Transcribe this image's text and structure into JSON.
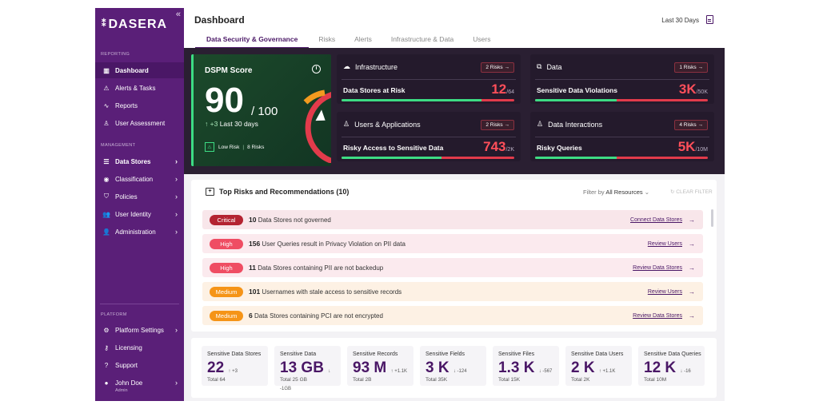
{
  "sidebar": {
    "logo": "DASERA",
    "sections": {
      "reporting": "REPORTING",
      "management": "MANAGEMENT",
      "platform": "PLATFORM"
    },
    "reporting_items": [
      {
        "label": "Dashboard",
        "icon": "bar-chart-icon"
      },
      {
        "label": "Alerts & Tasks",
        "icon": "warning-icon"
      },
      {
        "label": "Reports",
        "icon": "activity-icon"
      },
      {
        "label": "User Assessment",
        "icon": "user-check-icon"
      }
    ],
    "management_items": [
      {
        "label": "Data Stores",
        "icon": "list-icon"
      },
      {
        "label": "Classification",
        "icon": "database-icon"
      },
      {
        "label": "Policies",
        "icon": "shield-icon"
      },
      {
        "label": "User Identity",
        "icon": "users-icon"
      },
      {
        "label": "Administration",
        "icon": "user-cog-icon"
      }
    ],
    "platform_items": [
      {
        "label": "Platform Settings",
        "icon": "gear-icon"
      },
      {
        "label": "Licensing",
        "icon": "key-icon"
      },
      {
        "label": "Support",
        "icon": "help-icon"
      }
    ],
    "user": {
      "name": "John Doe",
      "role": "Admin"
    }
  },
  "header": {
    "title": "Dashboard",
    "range": "Last 30 Days",
    "tabs": [
      "Data Security & Governance",
      "Risks",
      "Alerts",
      "Infrastructure & Data",
      "Users"
    ]
  },
  "dspm": {
    "title": "DSPM Score",
    "score": "90",
    "max": "/ 100",
    "delta": "+3",
    "delta_period": "Last 30 days",
    "risk_level": "Low Risk",
    "risk_count": "8 Risks",
    "score_value": 90
  },
  "cards": [
    {
      "title": "Infrastructure",
      "icon": "cloud-icon",
      "badge": "2 Risks →",
      "label": "Data Stores at Risk",
      "value": "12",
      "total": "/64",
      "fill_fraction": 0.81
    },
    {
      "title": "Data",
      "icon": "cubes-icon",
      "badge": "1 Risks →",
      "label": "Sensitive Data Violations",
      "value": "3K",
      "total": "/50K",
      "fill_fraction": 0.47
    },
    {
      "title": "Users & Applications",
      "icon": "user-icon",
      "badge": "2 Risks →",
      "label": "Risky Access to Sensitive Data",
      "value": "743",
      "total": "/2K",
      "fill_fraction": 0.58
    },
    {
      "title": "Data Interactions",
      "icon": "user-check-icon",
      "badge": "4 Risks →",
      "label": "Risky Queries",
      "value": "5K",
      "total": "/10M",
      "fill_fraction": 0.47
    }
  ],
  "risks": {
    "title": "Top Risks and Recommendations (10)",
    "filter_label": "Filter by",
    "filter_value": "All Resources",
    "clear": "CLEAR FILTER",
    "items": [
      {
        "severity": "Critical",
        "count": "10",
        "text": "Data Stores not governed",
        "action": "Connect Data Stores",
        "color": "#b42331",
        "bg": "#f8e6ea"
      },
      {
        "severity": "High",
        "count": "156",
        "text": "User Queries result in Privacy Violation on PII data",
        "action": "Review Users",
        "color": "#ef4d63",
        "bg": "#fbeaee"
      },
      {
        "severity": "High",
        "count": "11",
        "text": "Data Stores containing PII are not backedup",
        "action": "Review Data Stores",
        "color": "#ef4d63",
        "bg": "#fbeaee"
      },
      {
        "severity": "Medium",
        "count": "101",
        "text": "Usernames with stale access to sensitive records",
        "action": "Review Users",
        "color": "#f59417",
        "bg": "#fdf1e4"
      },
      {
        "severity": "Medium",
        "count": "6",
        "text": "Data Stores containing PCI are not encrypted",
        "action": "Review Data Stores",
        "color": "#f59417",
        "bg": "#fdf1e4"
      }
    ]
  },
  "stats": [
    {
      "label": "Sensitive Data Stores",
      "value": "22",
      "delta": "↑ +3",
      "total": "Total 64"
    },
    {
      "label": "Sensitive Data",
      "value": "13 GB",
      "delta": "↓ -1GB",
      "total": "Total 25 GB"
    },
    {
      "label": "Sensitive Records",
      "value": "93 M",
      "delta": "↑ +1.1K",
      "total": "Total 2B"
    },
    {
      "label": "Sensitive Fields",
      "value": "3 K",
      "delta": "↓ -124",
      "total": "Total 35K"
    },
    {
      "label": "Sensitive Files",
      "value": "1.3 K",
      "delta": "↓ -567",
      "total": "Total 15K"
    },
    {
      "label": "Sensitive Data Users",
      "value": "2 K",
      "delta": "↑ +1.1K",
      "total": "Total 2K"
    },
    {
      "label": "Sensitive Data Queries",
      "value": "12 K",
      "delta": "↓ -16",
      "total": "Total 10M"
    }
  ]
}
